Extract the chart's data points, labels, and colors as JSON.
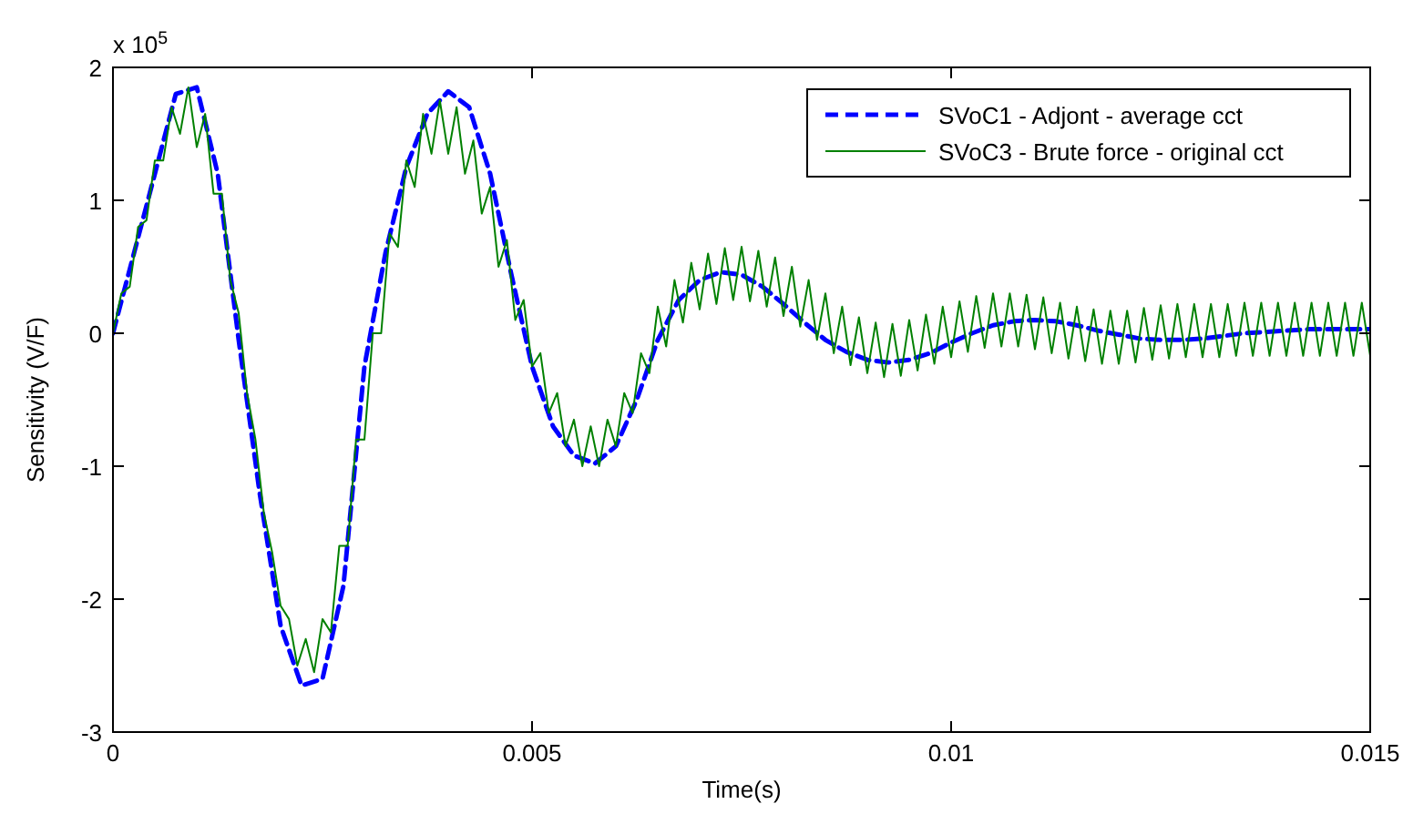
{
  "chart_data": {
    "type": "line",
    "xlabel": "Time(s)",
    "ylabel": "Sensitivity (V/F)",
    "annotations": [
      "x 10$^{5}$"
    ],
    "xlim": [
      0,
      0.015
    ],
    "ylim": [
      -3,
      2
    ],
    "xticks": [
      0,
      0.005,
      0.01,
      0.015
    ],
    "yticks": [
      -3,
      -2,
      -1,
      0,
      1,
      2
    ],
    "grid": false,
    "legend": "top right",
    "marker": "none",
    "x": [
      0,
      0.0001,
      0.0002,
      0.0003,
      0.0004,
      0.0005,
      0.0006,
      0.0007,
      0.0008,
      0.0009,
      0.001,
      0.0011,
      0.0012,
      0.0013,
      0.0014,
      0.0015,
      0.0016,
      0.0017,
      0.0018,
      0.0019,
      0.002,
      0.0021,
      0.0022,
      0.0023,
      0.0024,
      0.0025,
      0.0026,
      0.0027,
      0.0028,
      0.0029,
      0.003,
      0.0031,
      0.0032,
      0.0033,
      0.0034,
      0.0035,
      0.0036,
      0.0037,
      0.0038,
      0.0039,
      0.004,
      0.0041,
      0.0042,
      0.0043,
      0.0044,
      0.0045,
      0.0046,
      0.0047,
      0.0048,
      0.0049,
      0.005,
      0.0051,
      0.0052,
      0.0053,
      0.0054,
      0.0055,
      0.0056,
      0.0057,
      0.0058,
      0.0059,
      0.006,
      0.0061,
      0.0062,
      0.0063,
      0.0064,
      0.0065,
      0.0066,
      0.0067,
      0.0068,
      0.0069,
      0.007,
      0.0071,
      0.0072,
      0.0073,
      0.0074,
      0.0075,
      0.0076,
      0.0077,
      0.0078,
      0.0079,
      0.008,
      0.0081,
      0.0082,
      0.0083,
      0.0084,
      0.0085,
      0.0086,
      0.0087,
      0.0088,
      0.0089,
      0.009,
      0.0091,
      0.0092,
      0.0093,
      0.0094,
      0.0095,
      0.0096,
      0.0097,
      0.0098,
      0.0099,
      0.01,
      0.0101,
      0.0102,
      0.0103,
      0.0104,
      0.0105,
      0.0106,
      0.0107,
      0.0108,
      0.0109,
      0.011,
      0.0111,
      0.0112,
      0.0113,
      0.0114,
      0.0115,
      0.0116,
      0.0117,
      0.0118,
      0.0119,
      0.012,
      0.0121,
      0.0122,
      0.0123,
      0.0124,
      0.0125,
      0.0126,
      0.0127,
      0.0128,
      0.0129,
      0.013,
      0.0131,
      0.0132,
      0.0133,
      0.0134,
      0.0135,
      0.0136,
      0.0137,
      0.0138,
      0.0139,
      0.014,
      0.0141,
      0.0142,
      0.0143,
      0.0144,
      0.0145,
      0.0146,
      0.0147,
      0.0148,
      0.0149,
      0.015
    ],
    "series": [
      {
        "name": "SVoC1 - Adjont - average cct",
        "color": "#0000ff",
        "line_style": "dashed",
        "x": [
          0,
          0.00025,
          0.0005,
          0.00075,
          0.001,
          0.00125,
          0.0015,
          0.00175,
          0.002,
          0.00225,
          0.0025,
          0.00275,
          0.003,
          0.00325,
          0.0035,
          0.00375,
          0.004,
          0.00425,
          0.0045,
          0.00475,
          0.005,
          0.00525,
          0.0055,
          0.00575,
          0.006,
          0.00625,
          0.0065,
          0.00675,
          0.007,
          0.00725,
          0.0075,
          0.00775,
          0.008,
          0.00825,
          0.0085,
          0.00875,
          0.009,
          0.00925,
          0.0095,
          0.00975,
          0.01,
          0.01025,
          0.0105,
          0.01075,
          0.011,
          0.01125,
          0.0115,
          0.01175,
          0.012,
          0.01225,
          0.0125,
          0.01275,
          0.013,
          0.01325,
          0.0135,
          0.01375,
          0.014,
          0.01425,
          0.0145,
          0.01475,
          0.015
        ],
        "values": [
          0,
          0.6,
          1.2,
          1.8,
          1.85,
          1.2,
          -0.05,
          -1.2,
          -2.2,
          -2.65,
          -2.6,
          -1.9,
          -0.25,
          0.6,
          1.25,
          1.65,
          1.82,
          1.7,
          1.2,
          0.45,
          -0.25,
          -0.7,
          -0.92,
          -0.98,
          -0.85,
          -0.5,
          -0.05,
          0.25,
          0.4,
          0.46,
          0.44,
          0.35,
          0.22,
          0.08,
          -0.05,
          -0.14,
          -0.2,
          -0.22,
          -0.2,
          -0.15,
          -0.07,
          0,
          0.06,
          0.09,
          0.1,
          0.09,
          0.06,
          0.02,
          -0.01,
          -0.04,
          -0.05,
          -0.05,
          -0.04,
          -0.02,
          0,
          0.01,
          0.02,
          0.03,
          0.03,
          0.03,
          0.03
        ]
      },
      {
        "name": "SVoC3 - Brute force - original cct",
        "color": "#008000",
        "line_style": "solid",
        "values": [
          0,
          0.3,
          0.35,
          0.8,
          0.85,
          1.3,
          1.3,
          1.7,
          1.5,
          1.85,
          1.4,
          1.65,
          1.05,
          1.05,
          0.4,
          0.15,
          -0.45,
          -0.8,
          -1.35,
          -1.65,
          -2.05,
          -2.15,
          -2.5,
          -2.3,
          -2.55,
          -2.15,
          -2.25,
          -1.6,
          -1.6,
          -0.8,
          -0.8,
          0,
          0,
          0.75,
          0.65,
          1.3,
          1.1,
          1.65,
          1.35,
          1.75,
          1.35,
          1.7,
          1.2,
          1.45,
          0.9,
          1.1,
          0.5,
          0.7,
          0.1,
          0.25,
          -0.25,
          -0.15,
          -0.6,
          -0.45,
          -0.85,
          -0.65,
          -1.0,
          -0.7,
          -1.0,
          -0.65,
          -0.85,
          -0.45,
          -0.6,
          -0.15,
          -0.3,
          0.2,
          -0.1,
          0.4,
          0.08,
          0.53,
          0.18,
          0.6,
          0.22,
          0.64,
          0.25,
          0.65,
          0.24,
          0.62,
          0.2,
          0.57,
          0.13,
          0.5,
          0.05,
          0.4,
          -0.05,
          0.3,
          -0.15,
          0.2,
          -0.24,
          0.12,
          -0.3,
          0.08,
          -0.33,
          0.07,
          -0.32,
          0.1,
          -0.28,
          0.14,
          -0.23,
          0.2,
          -0.18,
          0.24,
          -0.14,
          0.28,
          -0.11,
          0.3,
          -0.1,
          0.3,
          -0.1,
          0.29,
          -0.12,
          0.27,
          -0.15,
          0.23,
          -0.19,
          0.2,
          -0.21,
          0.18,
          -0.23,
          0.17,
          -0.23,
          0.17,
          -0.22,
          0.19,
          -0.2,
          0.21,
          -0.19,
          0.22,
          -0.18,
          0.22,
          -0.18,
          0.22,
          -0.18,
          0.22,
          -0.17,
          0.23,
          -0.17,
          0.23,
          -0.17,
          0.23,
          -0.17,
          0.23,
          -0.17,
          0.23,
          -0.17,
          0.23,
          -0.17,
          0.23,
          -0.17,
          0.23,
          -0.17
        ]
      }
    ]
  }
}
